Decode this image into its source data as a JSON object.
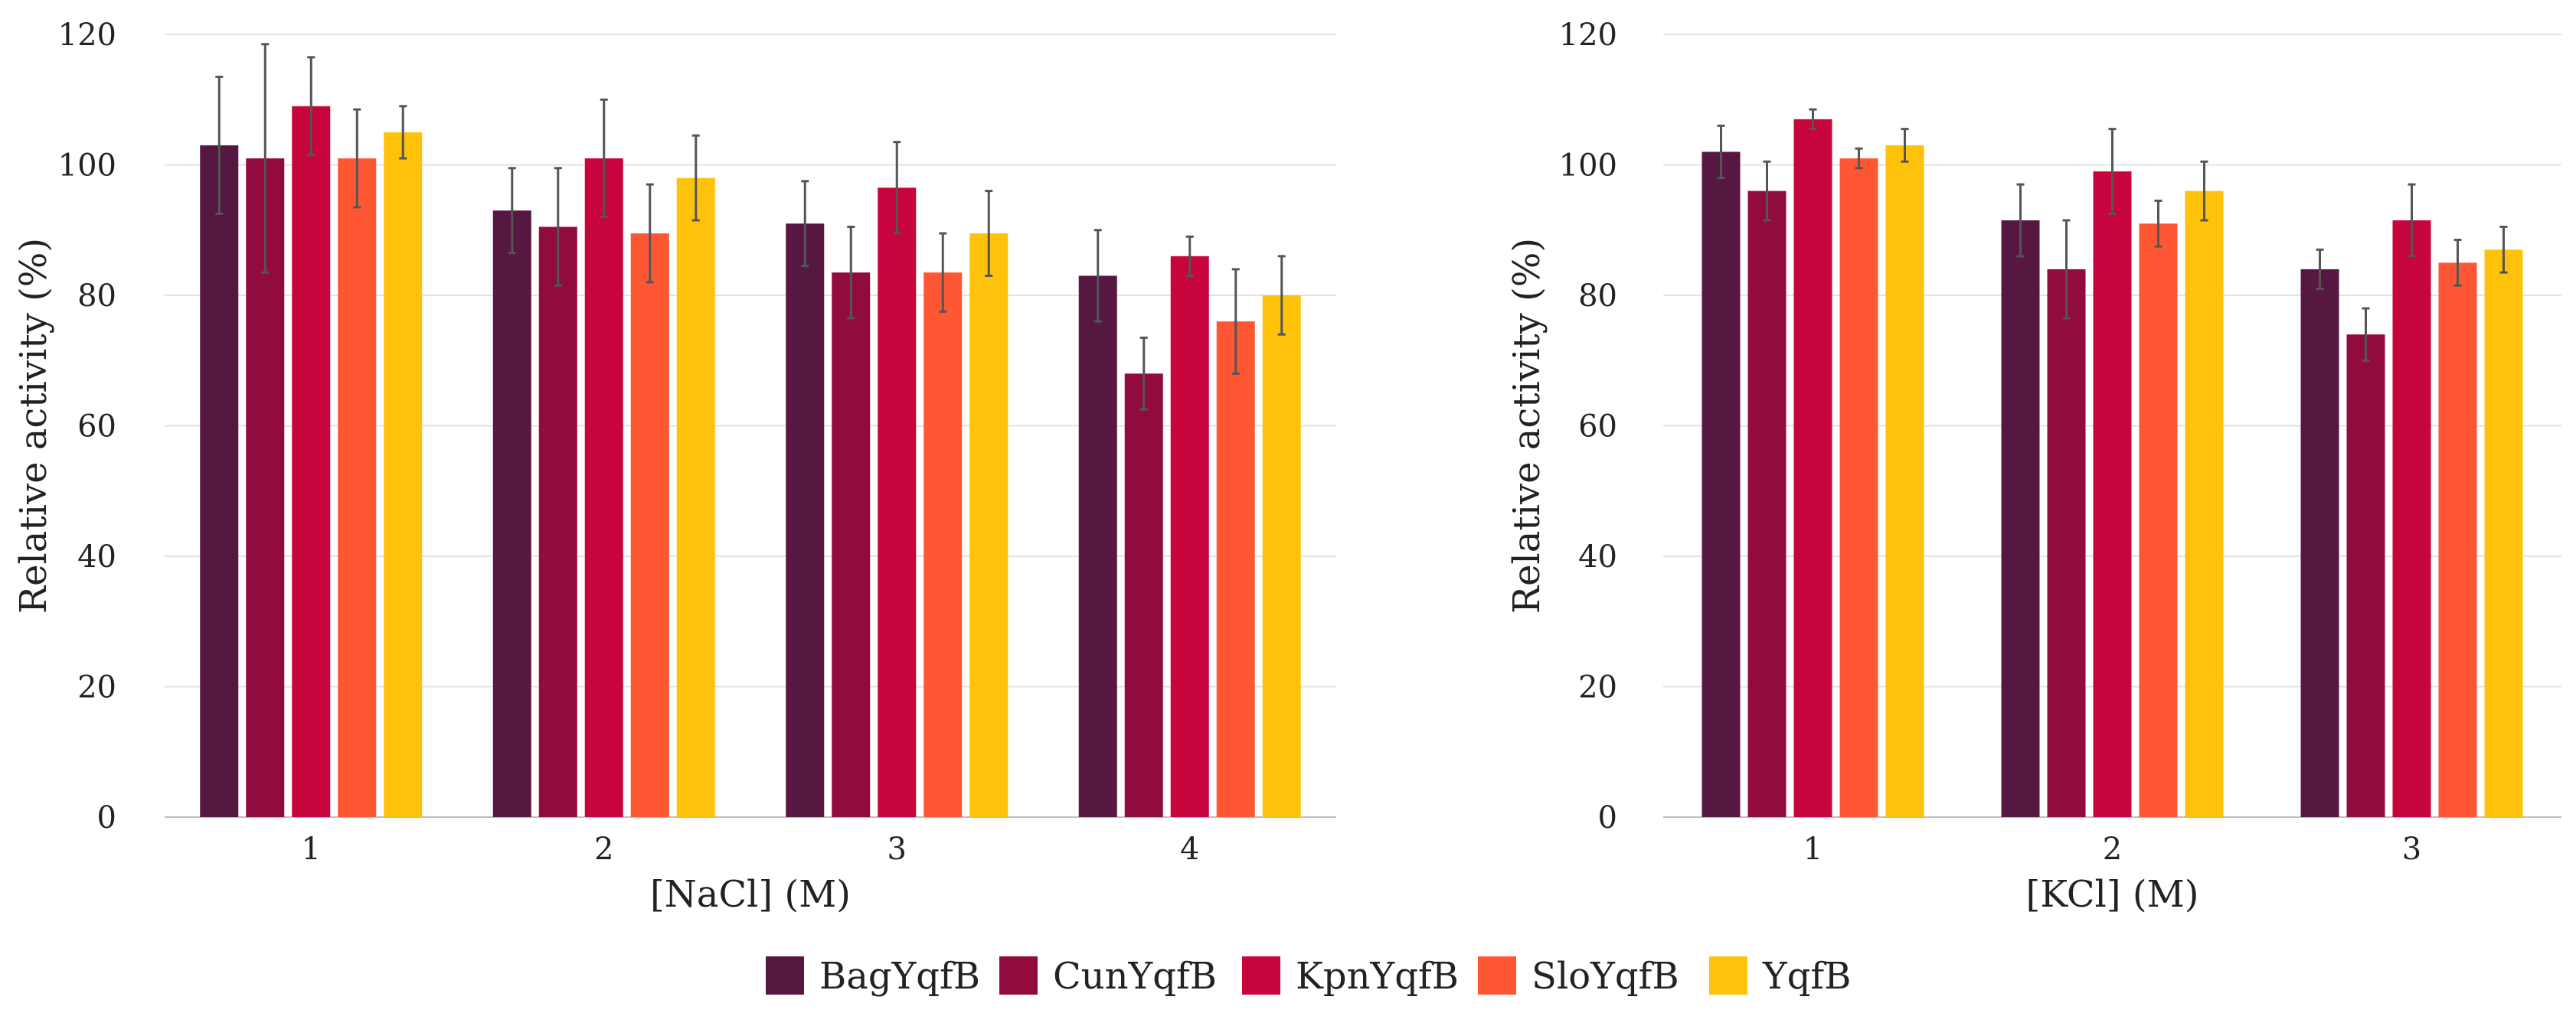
{
  "chart_data": [
    {
      "type": "bar",
      "title": "",
      "xlabel": "[NaCl] (M)",
      "ylabel": "Relative activity (%)",
      "ylim": [
        0,
        120
      ],
      "yticks": [
        0,
        20,
        40,
        60,
        80,
        100,
        120
      ],
      "categories": [
        "1",
        "2",
        "3",
        "4"
      ],
      "series": [
        {
          "name": "BagYqfB",
          "values": [
            103,
            93,
            91,
            83
          ],
          "errors": [
            10.5,
            6.5,
            6.5,
            7
          ]
        },
        {
          "name": "CunYqfB",
          "values": [
            101,
            90.5,
            83.5,
            68
          ],
          "errors": [
            17.5,
            9,
            7,
            5.5
          ]
        },
        {
          "name": "KpnYqfB",
          "values": [
            109,
            101,
            96.5,
            86
          ],
          "errors": [
            7.5,
            9,
            7,
            3
          ]
        },
        {
          "name": "SloYqfB",
          "values": [
            101,
            89.5,
            83.5,
            76
          ],
          "errors": [
            7.5,
            7.5,
            6,
            8
          ]
        },
        {
          "name": "YqfB",
          "values": [
            105,
            98,
            89.5,
            80
          ],
          "errors": [
            4,
            6.5,
            6.5,
            6
          ]
        }
      ],
      "grid": true
    },
    {
      "type": "bar",
      "title": "",
      "xlabel": "[KCl] (M)",
      "ylabel": "Relative activity (%)",
      "ylim": [
        0,
        120
      ],
      "yticks": [
        0,
        20,
        40,
        60,
        80,
        100,
        120
      ],
      "categories": [
        "1",
        "2",
        "3"
      ],
      "series": [
        {
          "name": "BagYqfB",
          "values": [
            102,
            91.5,
            84
          ],
          "errors": [
            4,
            5.5,
            3
          ]
        },
        {
          "name": "CunYqfB",
          "values": [
            96,
            84,
            74
          ],
          "errors": [
            4.5,
            7.5,
            4
          ]
        },
        {
          "name": "KpnYqfB",
          "values": [
            107,
            99,
            91.5
          ],
          "errors": [
            1.5,
            6.5,
            5.5
          ]
        },
        {
          "name": "SloYqfB",
          "values": [
            101,
            91,
            85
          ],
          "errors": [
            1.5,
            3.5,
            3.5
          ]
        },
        {
          "name": "YqfB",
          "values": [
            103,
            96,
            87
          ],
          "errors": [
            2.5,
            4.5,
            3.5
          ]
        }
      ],
      "grid": true
    }
  ],
  "legend": {
    "placement": "bottom-center",
    "items": [
      "BagYqfB",
      "CunYqfB",
      "KpnYqfB",
      "SloYqfB",
      "YqfB"
    ]
  },
  "colors": {
    "BagYqfB": "#561741",
    "CunYqfB": "#920b3f",
    "KpnYqfB": "#c7043c",
    "SloYqfB": "#ff5734",
    "YqfB": "#ffc20a"
  }
}
